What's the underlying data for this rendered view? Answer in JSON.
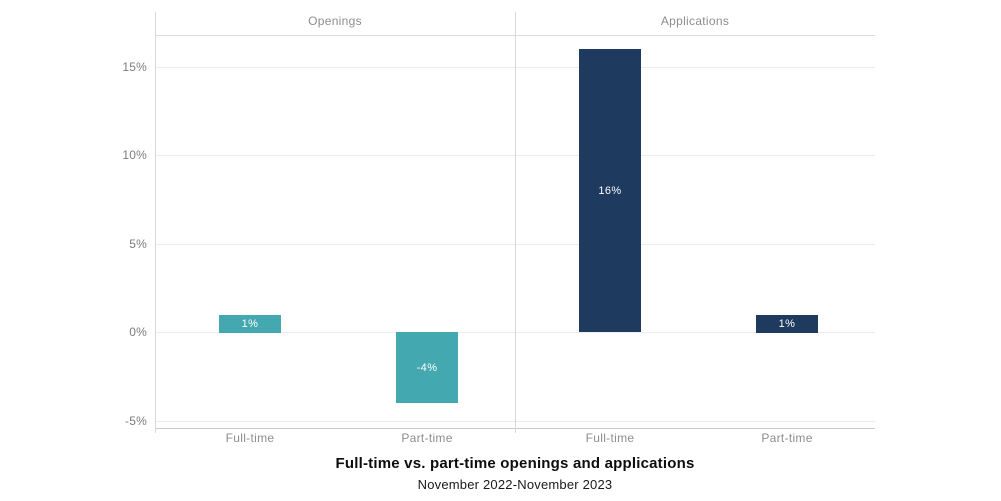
{
  "chart_data": {
    "type": "bar",
    "title": "Full-time vs. part-time openings and applications",
    "subtitle": "November 2022-November 2023",
    "legend": "none",
    "grid": true,
    "y_axis": {
      "tick_values": [
        15,
        10,
        5,
        0,
        -5
      ],
      "tick_labels": [
        "15%",
        "10%",
        "5%",
        "0%",
        "-5%"
      ],
      "ylim": [
        -5.4,
        16.8
      ]
    },
    "panels": [
      {
        "title": "Openings",
        "bar_color": "#44a8b0",
        "categories": [
          "Full-time",
          "Part-time"
        ],
        "values": [
          1,
          -4
        ],
        "value_labels": [
          "1%",
          "-4%"
        ]
      },
      {
        "title": "Applications",
        "bar_color": "#1e3a5e",
        "categories": [
          "Full-time",
          "Part-time"
        ],
        "values": [
          16,
          1
        ],
        "value_labels": [
          "16%",
          "1%"
        ]
      }
    ]
  },
  "colors": {
    "background": "#ffffff",
    "grid_line": "#ececec",
    "axis_line": "#c9c9c9",
    "divider_line": "#d8d8d8",
    "tick_label": "#7c7c7c",
    "category_label": "#8d8d8d",
    "panel_title": "#8d8d8d",
    "bar_label": "#ffffff",
    "openings_bar": "#44a8b0",
    "applications_bar": "#1e3a5e",
    "title": "#0d0d0d",
    "subtitle": "#1a1a1a"
  }
}
